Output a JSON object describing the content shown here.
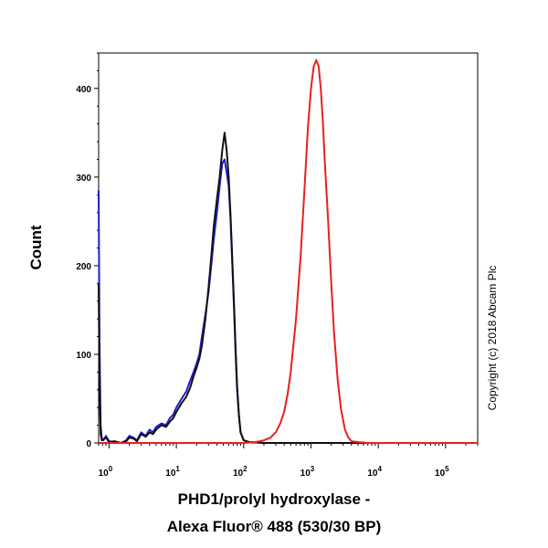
{
  "chart_data": {
    "type": "line",
    "title": "",
    "ylabel": "Count",
    "xlabel_lines": [
      "PHD1/prolyl hydroxylase -",
      "Alexa Fluor® 488 (530/30 BP)"
    ],
    "xscale": "log",
    "xlim": [
      0.7,
      300000
    ],
    "ylim": [
      0,
      440
    ],
    "x_ticks": [
      {
        "value": 1,
        "base": "10",
        "exp": "0"
      },
      {
        "value": 10,
        "base": "10",
        "exp": "1"
      },
      {
        "value": 100,
        "base": "10",
        "exp": "2"
      },
      {
        "value": 1000,
        "base": "10",
        "exp": "3"
      },
      {
        "value": 10000,
        "base": "10",
        "exp": "4"
      },
      {
        "value": 100000,
        "base": "10",
        "exp": "5"
      }
    ],
    "y_ticks": [
      0,
      100,
      200,
      300,
      400
    ],
    "grid": false,
    "annotation": "Copyright (c) 2018 Abcam Plc",
    "series": [
      {
        "color": "#1f1fcc",
        "x": [
          0.7,
          0.72,
          0.75,
          0.78,
          0.82,
          0.9,
          1.0,
          1.2,
          1.5,
          1.8,
          2.0,
          2.3,
          2.6,
          3.0,
          3.5,
          4.0,
          4.5,
          5.0,
          6.0,
          7.0,
          8.0,
          9.0,
          10.0,
          12.0,
          14.0,
          16.0,
          18.0,
          20.0,
          22.0,
          24.0,
          27.0,
          30.0,
          33.0,
          36.0,
          40.0,
          44.0,
          48.0,
          52.0,
          56.0,
          60.0,
          64.0,
          68.0,
          72.0,
          76.0,
          80.0,
          85.0,
          90.0,
          100.0,
          120.0,
          200.0,
          1000.0,
          100000.0,
          300000.0
        ],
        "y": [
          285,
          120,
          20,
          5,
          3,
          8,
          2,
          1,
          0,
          3,
          8,
          6,
          3,
          12,
          8,
          15,
          12,
          18,
          22,
          20,
          28,
          32,
          40,
          50,
          58,
          70,
          80,
          90,
          100,
          120,
          145,
          170,
          200,
          230,
          260,
          290,
          315,
          320,
          305,
          290,
          250,
          200,
          150,
          100,
          60,
          30,
          12,
          3,
          1,
          0,
          0,
          0,
          0
        ]
      },
      {
        "color": "#111111",
        "x": [
          0.7,
          0.72,
          0.75,
          0.78,
          0.82,
          0.9,
          1.0,
          1.2,
          1.5,
          1.8,
          2.0,
          2.3,
          2.6,
          3.0,
          3.5,
          4.0,
          4.5,
          5.0,
          6.0,
          7.0,
          8.0,
          9.0,
          10.0,
          12.0,
          14.0,
          16.0,
          18.0,
          20.0,
          22.0,
          24.0,
          27.0,
          30.0,
          33.0,
          36.0,
          40.0,
          44.0,
          48.0,
          52.0,
          56.0,
          60.0,
          64.0,
          68.0,
          72.0,
          76.0,
          80.0,
          85.0,
          90.0,
          100.0,
          120.0,
          200.0,
          1000.0,
          100000.0,
          300000.0
        ],
        "y": [
          180,
          70,
          10,
          3,
          4,
          6,
          1,
          2,
          0,
          2,
          6,
          5,
          2,
          10,
          7,
          12,
          10,
          15,
          20,
          18,
          24,
          28,
          35,
          45,
          52,
          62,
          75,
          85,
          95,
          110,
          140,
          175,
          210,
          245,
          275,
          300,
          330,
          350,
          330,
          300,
          255,
          205,
          155,
          105,
          65,
          32,
          12,
          3,
          1,
          0,
          0,
          0,
          0
        ]
      },
      {
        "color": "#e82020",
        "x": [
          0.7,
          100.0,
          150.0,
          200.0,
          250.0,
          300.0,
          350.0,
          400.0,
          450.0,
          500.0,
          600.0,
          700.0,
          800.0,
          900.0,
          1000.0,
          1100.0,
          1200.0,
          1300.0,
          1400.0,
          1500.0,
          1600.0,
          1800.0,
          2000.0,
          2200.0,
          2500.0,
          2800.0,
          3200.0,
          3600.0,
          4000.0,
          5000.0,
          7000.0,
          100000.0,
          300000.0
        ],
        "y": [
          0,
          0,
          1,
          3,
          6,
          12,
          22,
          35,
          55,
          80,
          140,
          210,
          285,
          355,
          400,
          425,
          432,
          425,
          400,
          365,
          320,
          250,
          180,
          125,
          70,
          38,
          15,
          6,
          2,
          1,
          0,
          0,
          0
        ]
      }
    ]
  }
}
